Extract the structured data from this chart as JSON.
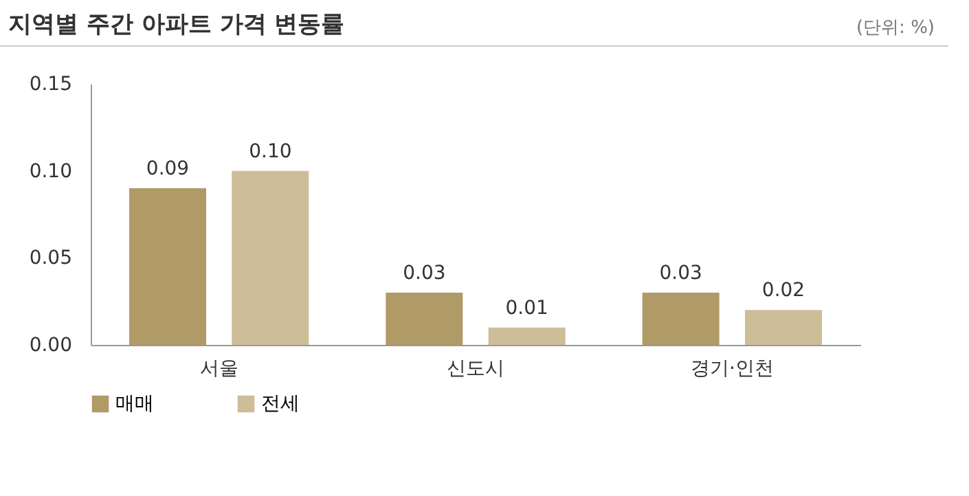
{
  "chart_data": {
    "type": "bar",
    "title": "지역별 주간 아파트 가격 변동률",
    "annotations": [
      "(단위: %)"
    ],
    "categories": [
      "서울",
      "신도시",
      "경기·인천"
    ],
    "series": [
      {
        "name": "매매",
        "color": "#b09a66",
        "values": [
          0.09,
          0.03,
          0.03
        ],
        "value_labels": [
          "0.09",
          "0.03",
          "0.03"
        ]
      },
      {
        "name": "전세",
        "color": "#cdbd98",
        "values": [
          0.1,
          0.01,
          0.02
        ],
        "value_labels": [
          "0.10",
          "0.01",
          "0.02"
        ]
      }
    ],
    "ylim": [
      0,
      0.15
    ],
    "yticks": [
      {
        "value": 0,
        "label": "0.00"
      },
      {
        "value": 0.05,
        "label": "0.05"
      },
      {
        "value": 0.1,
        "label": "0.10"
      },
      {
        "value": 0.15,
        "label": "0.15"
      }
    ],
    "grid": false,
    "legend": "bottom"
  }
}
